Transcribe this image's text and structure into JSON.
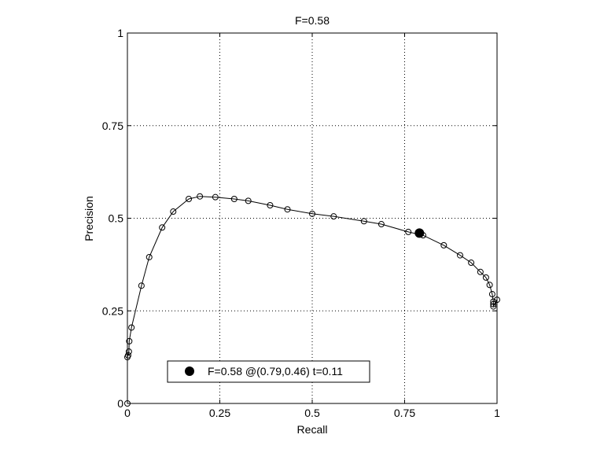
{
  "chart_data": {
    "type": "line",
    "title": "F=0.58",
    "xlabel": "Recall",
    "ylabel": "Precision",
    "xlim": [
      0,
      1
    ],
    "ylim": [
      0,
      1
    ],
    "xticks": [
      0,
      0.25,
      0.5,
      0.75,
      1
    ],
    "xtick_labels": [
      "0",
      "0.25",
      "0.5",
      "0.75",
      "1"
    ],
    "yticks": [
      0,
      0.25,
      0.5,
      0.75,
      1
    ],
    "ytick_labels": [
      "0",
      "0.25",
      "0.5",
      "0.75",
      "1"
    ],
    "grid": true,
    "legend_placement": "bottom-center",
    "legend_text": "F=0.58 @(0.79,0.46) t=0.11",
    "series": [
      {
        "x": [
          0.0,
          0.0,
          0.002,
          0.004,
          0.005,
          0.011,
          0.038,
          0.059,
          0.094,
          0.124,
          0.166,
          0.196,
          0.238,
          0.289,
          0.327,
          0.386,
          0.433,
          0.5,
          0.558,
          0.64,
          0.687,
          0.76,
          0.8,
          0.856,
          0.9,
          0.93,
          0.955,
          0.97,
          0.98,
          0.987,
          0.99,
          0.99,
          0.99,
          1.0
        ],
        "y": [
          0.0,
          0.125,
          0.13,
          0.14,
          0.168,
          0.205,
          0.318,
          0.395,
          0.475,
          0.518,
          0.552,
          0.559,
          0.557,
          0.552,
          0.547,
          0.535,
          0.524,
          0.512,
          0.505,
          0.492,
          0.484,
          0.463,
          0.454,
          0.427,
          0.4,
          0.38,
          0.355,
          0.34,
          0.32,
          0.295,
          0.275,
          0.268,
          0.262,
          0.28
        ],
        "marker": "open-circle",
        "color": "#000000"
      }
    ],
    "highlight_point": {
      "x": 0.79,
      "y": 0.46,
      "label": "F=0.58 @(0.79,0.46) t=0.11",
      "marker": "filled-circle"
    }
  }
}
